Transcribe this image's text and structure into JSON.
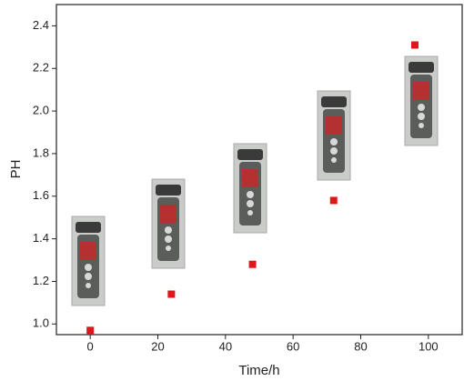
{
  "chart_data": {
    "type": "scatter",
    "x_label": "Time/h",
    "y_label": "PH",
    "series": [
      {
        "color": "#e0161b",
        "x": [
          0,
          24,
          48,
          72,
          96
        ],
        "values": [
          0.97,
          1.14,
          1.28,
          1.58,
          2.31
        ]
      }
    ],
    "xlim": [
      -10,
      110
    ],
    "xticks": [
      0,
      20,
      40,
      60,
      80,
      100
    ],
    "ylim": [
      0.95,
      2.5
    ],
    "yticks": [
      {
        "value": 1,
        "label": "1.0"
      },
      1.2,
      1.4,
      1.6,
      1.8,
      {
        "value": 2,
        "label": "2.0"
      },
      2.2,
      2.4
    ]
  }
}
